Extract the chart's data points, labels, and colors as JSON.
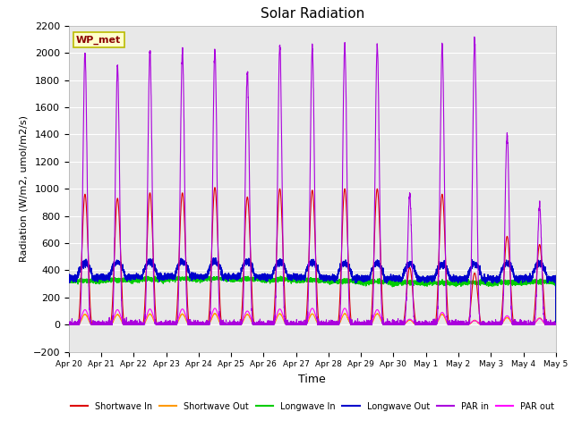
{
  "title": "Solar Radiation",
  "ylabel": "Radiation (W/m2, umol/m2/s)",
  "xlabel": "Time",
  "ylim": [
    -200,
    2200
  ],
  "yticks": [
    -200,
    0,
    200,
    400,
    600,
    800,
    1000,
    1200,
    1400,
    1600,
    1800,
    2000,
    2200
  ],
  "background_color": "#e8e8e8",
  "legend_label": "WP_met",
  "series_colors": {
    "shortwave_in": "#dd0000",
    "shortwave_out": "#ff9900",
    "longwave_in": "#00cc00",
    "longwave_out": "#0000cc",
    "par_in": "#aa00dd",
    "par_out": "#ff00ff"
  },
  "legend_entries": [
    {
      "label": "Shortwave In",
      "color": "#dd0000"
    },
    {
      "label": "Shortwave Out",
      "color": "#ff9900"
    },
    {
      "label": "Longwave In",
      "color": "#00cc00"
    },
    {
      "label": "Longwave Out",
      "color": "#0000cc"
    },
    {
      "label": "PAR in",
      "color": "#aa00dd"
    },
    {
      "label": "PAR out",
      "color": "#ff00ff"
    }
  ],
  "x_tick_labels": [
    "Apr 20",
    "Apr 21",
    "Apr 22",
    "Apr 23",
    "Apr 24",
    "Apr 25",
    "Apr 26",
    "Apr 27",
    "Apr 28",
    "Apr 29",
    "Apr 30",
    "May 1",
    "May 2",
    "May 3",
    "May 4",
    "May 5"
  ],
  "sw_peaks": [
    960,
    930,
    970,
    970,
    1010,
    940,
    1000,
    990,
    1000,
    1000,
    420,
    960,
    380,
    650,
    590
  ],
  "par_in_peaks": [
    2000,
    1900,
    2020,
    2010,
    2020,
    1850,
    2050,
    2040,
    2050,
    2050,
    960,
    2060,
    2090,
    1400,
    880
  ],
  "par_out_peaks": [
    110,
    110,
    115,
    115,
    120,
    100,
    115,
    120,
    120,
    110,
    40,
    90,
    30,
    65,
    45
  ],
  "lw_in_base": 320,
  "lw_out_base": 360,
  "num_days": 15,
  "pts_per_day": 288
}
